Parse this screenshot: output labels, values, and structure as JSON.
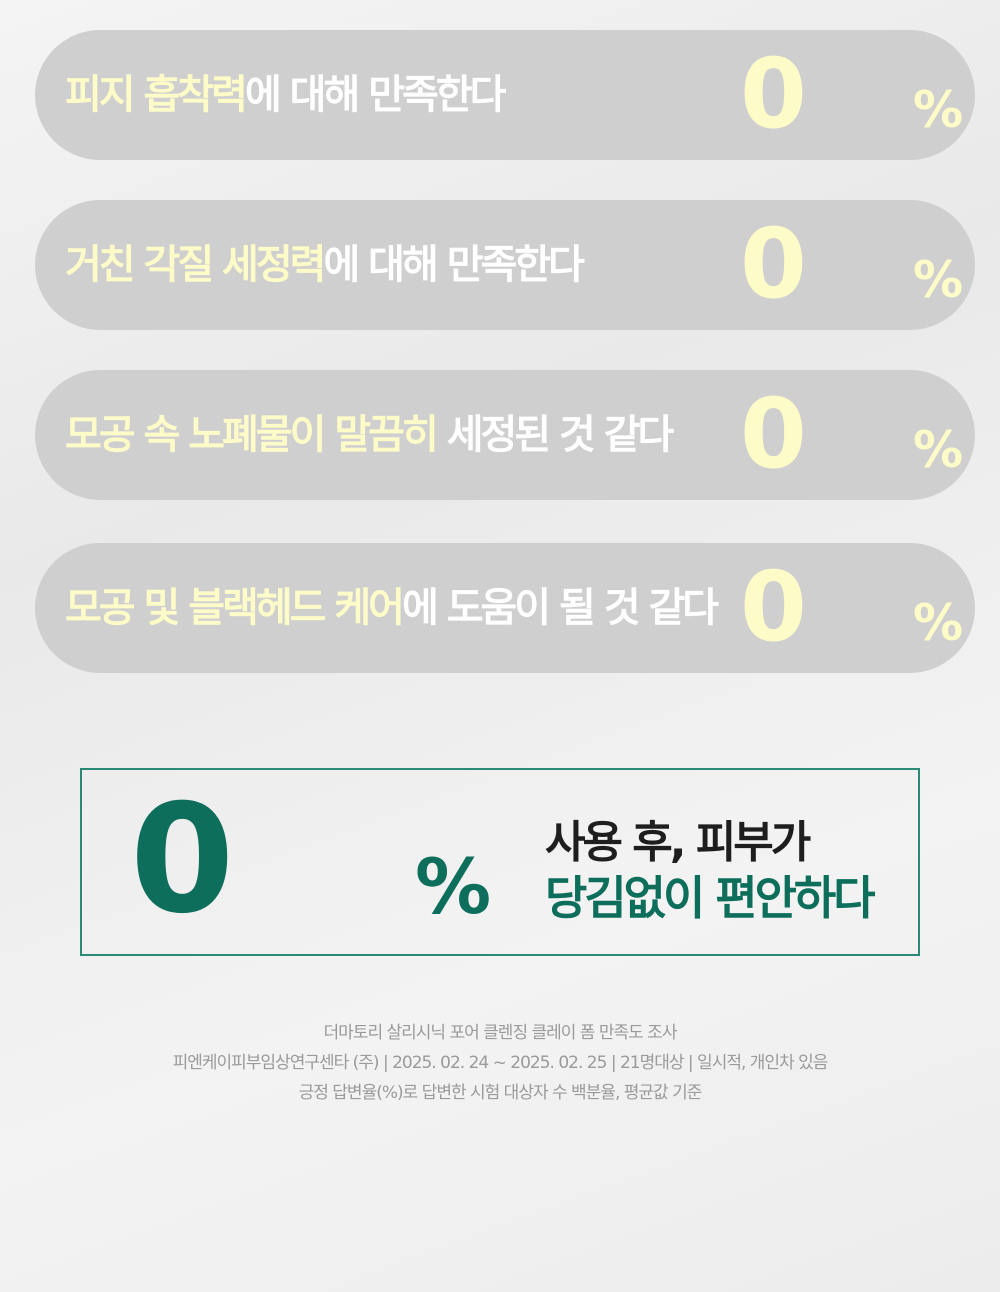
{
  "colors": {
    "highlight": "#fdfcc8",
    "pill": "#cfcfcf",
    "accent": "#0e6e5c"
  },
  "items": [
    {
      "highlight": "피지 흡착력",
      "rest": "에 대해 만족한다",
      "value": "0",
      "unit": "%"
    },
    {
      "highlight": "거친 각질 세정력",
      "rest": "에 대해 만족한다",
      "value": "0",
      "unit": "%"
    },
    {
      "highlight": "모공 속 노폐물이 말끔히",
      "rest": " 세정된 것 같다",
      "value": "0",
      "unit": "%"
    },
    {
      "highlight": "모공 및 블랙헤드 케어",
      "rest": "에 도움이 될 것 같다",
      "value": "0",
      "unit": "%"
    }
  ],
  "feature": {
    "value": "0",
    "unit": "%",
    "line1": "사용 후, 피부가",
    "line2": "당김없이 편안하다"
  },
  "notes": [
    "더마토리 살리시닉 포어 클렌징 클레이 폼 만족도 조사",
    "피엔케이피부임상연구센타 (주) | 2025. 02. 24 ~ 2025. 02. 25 | 21명대상 | 일시적, 개인차 있음",
    "긍정 답변율(%)로 답변한 시험 대상자 수 백분율, 평균값 기준"
  ]
}
